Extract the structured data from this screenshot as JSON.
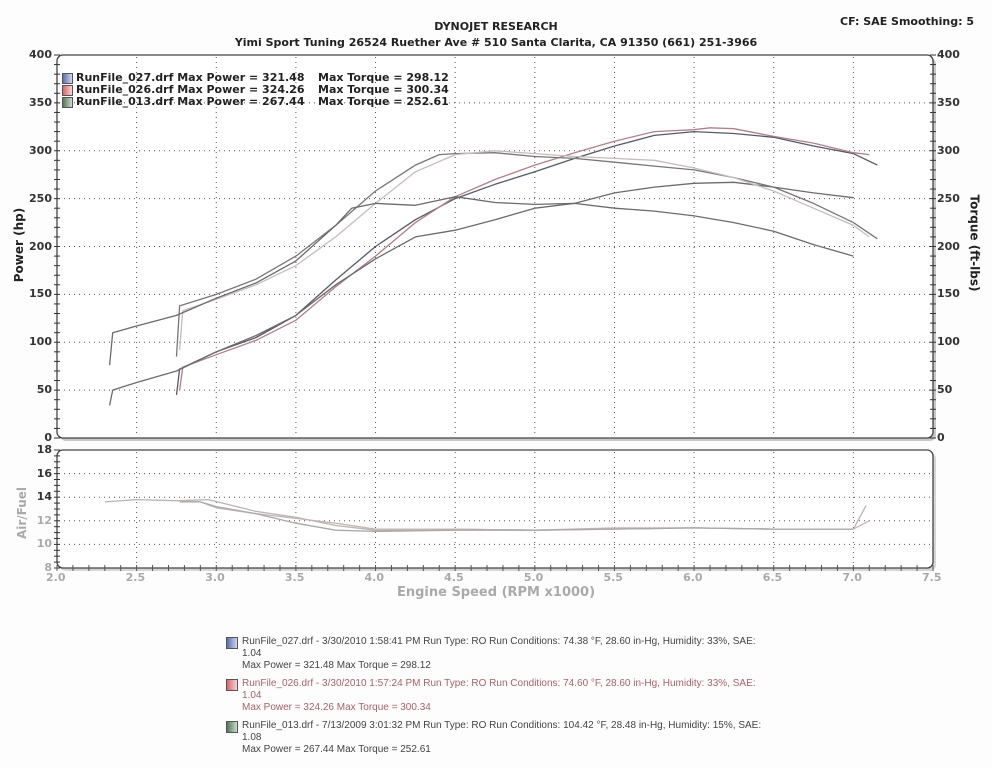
{
  "header": {
    "title": "DYNOJET RESEARCH",
    "subtitle": "Yimi Sport Tuning 26524 Ruether Ave # 510 Santa Clarita, CA 91350 (661) 251-3966",
    "settings": "CF: SAE  Smoothing: 5"
  },
  "axes": {
    "left_label": "Power (hp)",
    "right_label": "Torque (ft-lbs)",
    "afr_label": "Air/Fuel",
    "x_label": "Engine Speed (RPM x1000)"
  },
  "top_legend": [
    {
      "name": "RunFile_027.drf Max Power = 321.48",
      "torque": "Max Torque = 298.12",
      "color": "#5a6fb0"
    },
    {
      "name": "RunFile_026.drf Max Power = 324.26",
      "torque": "Max Torque = 300.34",
      "color": "#d9676a"
    },
    {
      "name": "RunFile_013.drf Max Power = 267.44",
      "torque": "Max Torque = 252.61",
      "color": "#4f7a55"
    }
  ],
  "bottom_legend": [
    {
      "line1": "RunFile_027.drf - 3/30/2010 1:58:41 PM  Run Type: RO  Run Conditions: 74.38 °F, 28.60 in-Hg,  Humidity:  33%, SAE:",
      "line2": "1.04",
      "line3": "Max Power = 321.48  Max Torque = 298.12",
      "color": "#5a6fb0",
      "text_color": "#444"
    },
    {
      "line1": "RunFile_026.drf - 3/30/2010 1:57:24 PM  Run Type: RO  Run Conditions: 74.60 °F, 28.60 in-Hg,  Humidity:  33%, SAE:",
      "line2": "1.04",
      "line3": "Max Power = 324.26  Max Torque = 300.34",
      "color": "#d9676a",
      "text_color": "#a8626a"
    },
    {
      "line1": "RunFile_013.drf - 7/13/2009 3:01:32 PM  Run Type: RO  Run Conditions: 104.42 °F, 28.48 in-Hg,  Humidity:  15%, SAE:",
      "line2": "1.08",
      "line3": "Max Power = 267.44  Max Torque = 252.61",
      "color": "#4f7a55",
      "text_color": "#444"
    }
  ],
  "chart_data": [
    {
      "type": "line",
      "title": "DYNOJET RESEARCH",
      "subtitle": "Yimi Sport Tuning 26524 Ruether Ave # 510 Santa Clarita, CA 91350 (661) 251-3966",
      "xlabel": "Engine Speed (RPM x1000)",
      "ylabel": "Power (hp)",
      "ylabel_right": "Torque (ft-lbs)",
      "xlim": [
        2.0,
        7.5
      ],
      "ylim": [
        0,
        400
      ],
      "x_ticks": [
        "2.0",
        "2.5",
        "3.0",
        "3.5",
        "4.0",
        "4.5",
        "5.0",
        "5.5",
        "6.0",
        "6.5",
        "7.0",
        "7.5"
      ],
      "y_ticks": [
        "0",
        "50",
        "100",
        "150",
        "200",
        "250",
        "300",
        "350",
        "400"
      ],
      "grid": true,
      "legend_position": "top-left",
      "series": [
        {
          "name": "RunFile_027.drf Power",
          "color": "#55596a",
          "x": [
            2.75,
            2.77,
            3.0,
            3.25,
            3.5,
            3.75,
            4.0,
            4.25,
            4.5,
            4.75,
            5.0,
            5.25,
            5.5,
            5.75,
            6.0,
            6.25,
            6.5,
            6.75,
            7.0,
            7.15
          ],
          "values": [
            45,
            72,
            90,
            105,
            128,
            165,
            200,
            228,
            250,
            265,
            278,
            292,
            305,
            316,
            320,
            318,
            314,
            305,
            297,
            285
          ]
        },
        {
          "name": "RunFile_026.drf Power",
          "color": "#b08088",
          "x": [
            2.77,
            2.79,
            3.0,
            3.25,
            3.5,
            3.75,
            4.0,
            4.25,
            4.5,
            4.75,
            5.0,
            5.25,
            5.5,
            5.75,
            6.0,
            6.1,
            6.25,
            6.5,
            6.75,
            7.0,
            7.1
          ],
          "values": [
            50,
            74,
            87,
            102,
            123,
            158,
            190,
            225,
            252,
            270,
            285,
            298,
            310,
            320,
            322,
            324,
            323,
            315,
            308,
            298,
            296
          ]
        },
        {
          "name": "RunFile_013.drf Power",
          "color": "#6b6b6b",
          "x": [
            2.33,
            2.35,
            2.5,
            2.75,
            3.0,
            3.25,
            3.5,
            3.75,
            4.0,
            4.25,
            4.5,
            4.75,
            5.0,
            5.25,
            5.5,
            5.75,
            6.0,
            6.25,
            6.5,
            6.75,
            7.0
          ],
          "values": [
            34,
            50,
            58,
            70,
            90,
            107,
            128,
            160,
            187,
            210,
            217,
            228,
            240,
            245,
            256,
            262,
            266,
            267,
            262,
            256,
            251
          ]
        },
        {
          "name": "RunFile_027.drf Torque",
          "color": "#777777",
          "x": [
            2.75,
            2.77,
            3.0,
            3.25,
            3.5,
            3.75,
            4.0,
            4.25,
            4.4,
            4.5,
            4.75,
            5.0,
            5.25,
            5.5,
            5.75,
            6.0,
            6.25,
            6.5,
            6.75,
            7.0,
            7.15
          ],
          "values": [
            85,
            138,
            150,
            166,
            190,
            222,
            258,
            285,
            296,
            297,
            298,
            294,
            292,
            288,
            284,
            280,
            272,
            262,
            245,
            225,
            208
          ]
        },
        {
          "name": "RunFile_026.drf Torque",
          "color": "#c7bcbc",
          "x": [
            2.77,
            2.79,
            3.0,
            3.25,
            3.5,
            3.75,
            4.0,
            4.25,
            4.5,
            4.75,
            5.0,
            5.25,
            5.5,
            5.75,
            6.0,
            6.25,
            6.5,
            6.75,
            7.0,
            7.1
          ],
          "values": [
            92,
            133,
            145,
            160,
            180,
            210,
            245,
            278,
            296,
            300,
            297,
            294,
            292,
            290,
            282,
            272,
            258,
            240,
            222,
            210
          ]
        },
        {
          "name": "RunFile_013.drf Torque",
          "color": "#6b6b6b",
          "x": [
            2.33,
            2.35,
            2.5,
            2.75,
            3.0,
            3.25,
            3.5,
            3.75,
            3.85,
            4.0,
            4.25,
            4.5,
            4.75,
            5.0,
            5.25,
            5.5,
            5.75,
            6.0,
            6.25,
            6.5,
            6.75,
            7.0
          ],
          "values": [
            76,
            110,
            117,
            128,
            146,
            162,
            185,
            222,
            240,
            245,
            243,
            252,
            246,
            244,
            245,
            240,
            237,
            232,
            225,
            216,
            202,
            190
          ]
        }
      ]
    },
    {
      "type": "line",
      "title": "",
      "xlabel": "Engine Speed (RPM x1000)",
      "ylabel": "Air/Fuel",
      "xlim": [
        2.0,
        7.5
      ],
      "ylim": [
        8,
        18
      ],
      "x_ticks": [
        "2.0",
        "2.5",
        "3.0",
        "3.5",
        "4.0",
        "4.5",
        "5.0",
        "5.5",
        "6.0",
        "6.5",
        "7.0",
        "7.5"
      ],
      "y_ticks": [
        "8",
        "10",
        "12",
        "14",
        "16",
        "18"
      ],
      "grid": true,
      "series": [
        {
          "name": "RunFile_027.drf AFR",
          "color": "#b5b5b5",
          "x": [
            2.3,
            2.5,
            2.75,
            2.95,
            3.25,
            3.5,
            3.75,
            4.0,
            4.5,
            5.0,
            5.5,
            6.0,
            6.5,
            7.0,
            7.08
          ],
          "values": [
            13.6,
            13.8,
            13.7,
            13.8,
            12.8,
            12.3,
            11.6,
            11.2,
            11.3,
            11.2,
            11.3,
            11.4,
            11.3,
            11.3,
            13.3
          ]
        },
        {
          "name": "RunFile_026.drf AFR",
          "color": "#c9b4b4",
          "x": [
            2.77,
            2.9,
            3.0,
            3.25,
            3.5,
            3.75,
            4.0,
            4.5,
            5.0,
            5.5,
            6.0,
            6.5,
            7.0,
            7.1
          ],
          "values": [
            13.7,
            13.6,
            13.1,
            12.6,
            12.2,
            11.8,
            11.3,
            11.3,
            11.2,
            11.4,
            11.4,
            11.3,
            11.3,
            12.0
          ]
        },
        {
          "name": "RunFile_013.drf AFR",
          "color": "#a8a8a8",
          "x": [
            2.77,
            2.9,
            3.0,
            3.25,
            3.5,
            3.75,
            4.0,
            4.5,
            5.0,
            5.5,
            6.0,
            6.5,
            7.0
          ],
          "values": [
            13.6,
            13.6,
            13.2,
            12.6,
            11.8,
            11.2,
            11.1,
            11.2,
            11.2,
            11.3,
            11.4,
            11.3,
            11.3
          ]
        }
      ]
    }
  ]
}
